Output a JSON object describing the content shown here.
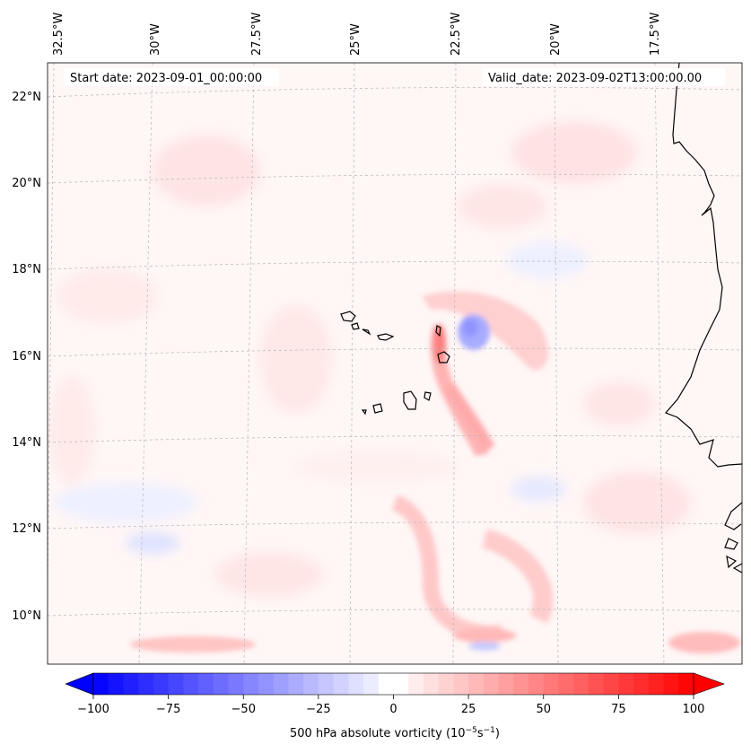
{
  "map": {
    "start_date": "Start date: 2023-09-01_00:00:00",
    "valid_date": "Valid_date: 2023-09-02T13:00:00.00",
    "lon_labels": [
      "32.5°W",
      "30°W",
      "27.5°W",
      "25°W",
      "22.5°W",
      "20°W",
      "17.5°W"
    ],
    "lat_labels": [
      "22°N",
      "20°N",
      "18°N",
      "16°N",
      "14°N",
      "12°N",
      "10°N"
    ]
  },
  "colorbar": {
    "label_prefix": "500 hPa absolute vorticity (10",
    "label_exp1": "−5",
    "label_mid": "s",
    "label_exp2": "−1",
    "label_suffix": ")",
    "min": -100,
    "max": 100,
    "ticks": [
      "−100",
      "−75",
      "−50",
      "−25",
      "0",
      "25",
      "50",
      "75",
      "100"
    ],
    "tick_values": [
      -100,
      -75,
      -50,
      -25,
      0,
      25,
      50,
      75,
      100
    ],
    "n_levels": 40,
    "colors": {
      "negative": "#0000ff",
      "positive": "#ff0000",
      "zero": "#ffffff"
    }
  },
  "chart_data": {
    "type": "heatmap",
    "variable": "500 hPa absolute vorticity",
    "units": "10^-5 s^-1",
    "region_lon": [
      -33,
      -15.5
    ],
    "region_lat": [
      8.9,
      22.8
    ],
    "value_range": [
      -100,
      100
    ],
    "features": [
      {
        "name": "positive vorticity band near Cape Verde",
        "lon": -22.8,
        "lat": 16.1,
        "value": 45
      },
      {
        "name": "negative vorticity core",
        "lon": -22.1,
        "lat": 16.5,
        "value": -30
      },
      {
        "name": "southern trough streak",
        "lon": -21.5,
        "lat": 9.6,
        "value": 25
      }
    ]
  }
}
